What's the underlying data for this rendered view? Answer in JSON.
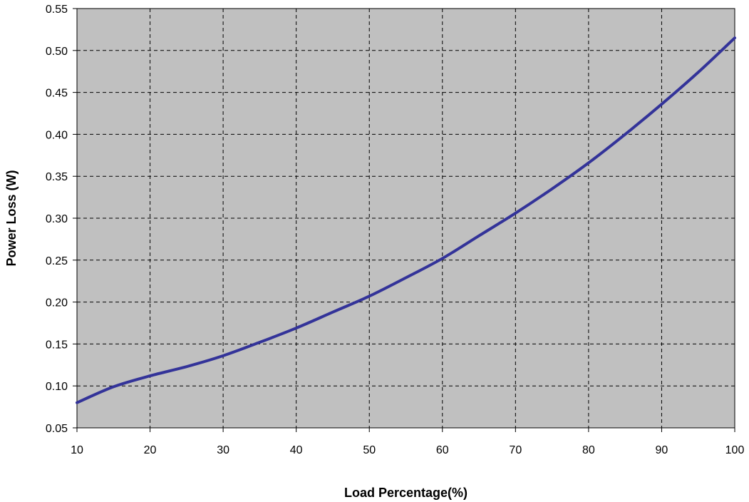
{
  "chart_data": {
    "type": "line",
    "title": "",
    "xlabel": "Load Percentage(%)",
    "ylabel": "Power Loss (W)",
    "xlim": [
      10,
      100
    ],
    "ylim": [
      0.05,
      0.55
    ],
    "x_ticks": [
      10,
      20,
      30,
      40,
      50,
      60,
      70,
      80,
      90,
      100
    ],
    "x_tick_labels": [
      "10",
      "20",
      "30",
      "40",
      "50",
      "60",
      "70",
      "80",
      "90",
      "100"
    ],
    "y_ticks": [
      0.05,
      0.1,
      0.15,
      0.2,
      0.25,
      0.3,
      0.35,
      0.4,
      0.45,
      0.5,
      0.55
    ],
    "y_tick_labels": [
      "0.05",
      "0.10",
      "0.15",
      "0.20",
      "0.25",
      "0.30",
      "0.35",
      "0.40",
      "0.45",
      "0.50",
      "0.55"
    ],
    "grid": true,
    "grid_style": "dashed",
    "legend": "none",
    "series": [
      {
        "x": [
          10,
          15,
          20,
          25,
          30,
          35,
          40,
          45,
          50,
          55,
          60,
          65,
          70,
          75,
          80,
          85,
          90,
          95,
          100
        ],
        "y": [
          0.08,
          0.099,
          0.112,
          0.123,
          0.136,
          0.152,
          0.169,
          0.188,
          0.207,
          0.229,
          0.252,
          0.279,
          0.306,
          0.335,
          0.366,
          0.4,
          0.436,
          0.474,
          0.515
        ]
      }
    ]
  },
  "colors": {
    "plot_background": "#c0c0c0",
    "line": "#333399",
    "grid": "#000000",
    "page_background": "#ffffff"
  }
}
